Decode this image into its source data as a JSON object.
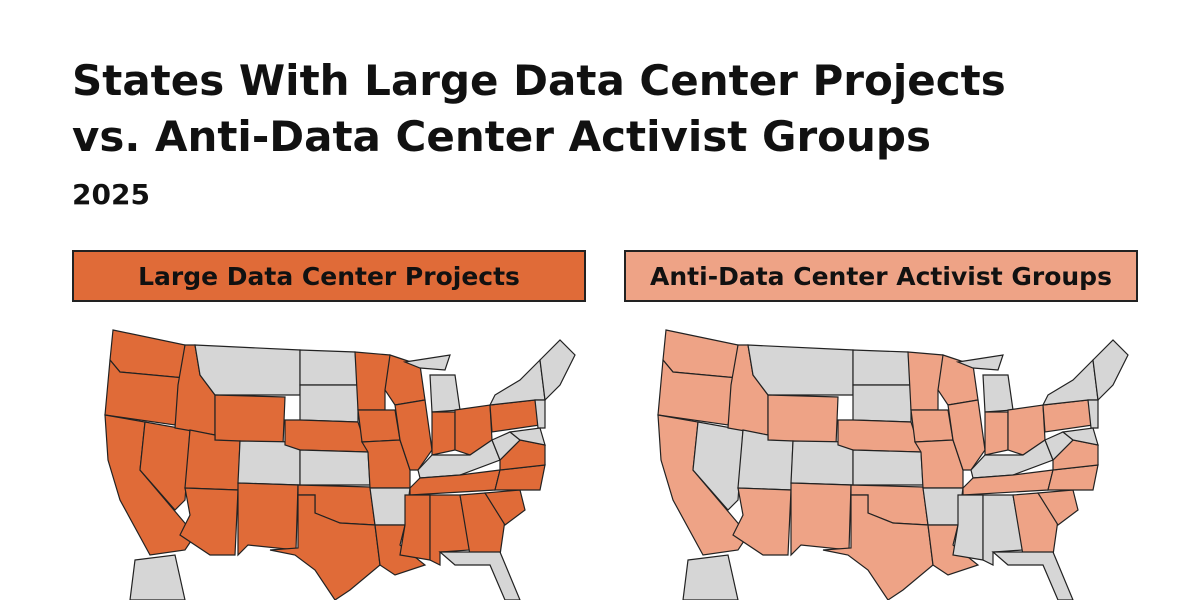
{
  "header": {
    "title_lines": [
      "States With Large Data Center Projects",
      "vs. Anti-Data Center Activist Groups"
    ],
    "subtitle": "2025"
  },
  "panels": [
    {
      "label": "Large Data Center Projects",
      "color": "#e06b38",
      "highlighted": [
        "WA",
        "OR",
        "CA",
        "NV",
        "ID",
        "UT",
        "AZ",
        "NM",
        "WY",
        "NE",
        "OK",
        "TX",
        "MN",
        "IA",
        "MO",
        "LA",
        "WI",
        "IL",
        "IN",
        "OH",
        "TN",
        "MS",
        "AL",
        "GA",
        "SC",
        "NC",
        "VA",
        "PA"
      ]
    },
    {
      "label": "Anti-Data Center Activist Groups",
      "color": "#eea386",
      "highlighted": [
        "WA",
        "OR",
        "CA",
        "ID",
        "AZ",
        "NM",
        "WY",
        "NE",
        "OK",
        "TX",
        "MN",
        "IA",
        "MO",
        "LA",
        "WI",
        "IL",
        "IN",
        "OH",
        "TN",
        "GA",
        "SC",
        "NC",
        "VA",
        "PA"
      ]
    }
  ],
  "base_color": "#d6d6d6"
}
